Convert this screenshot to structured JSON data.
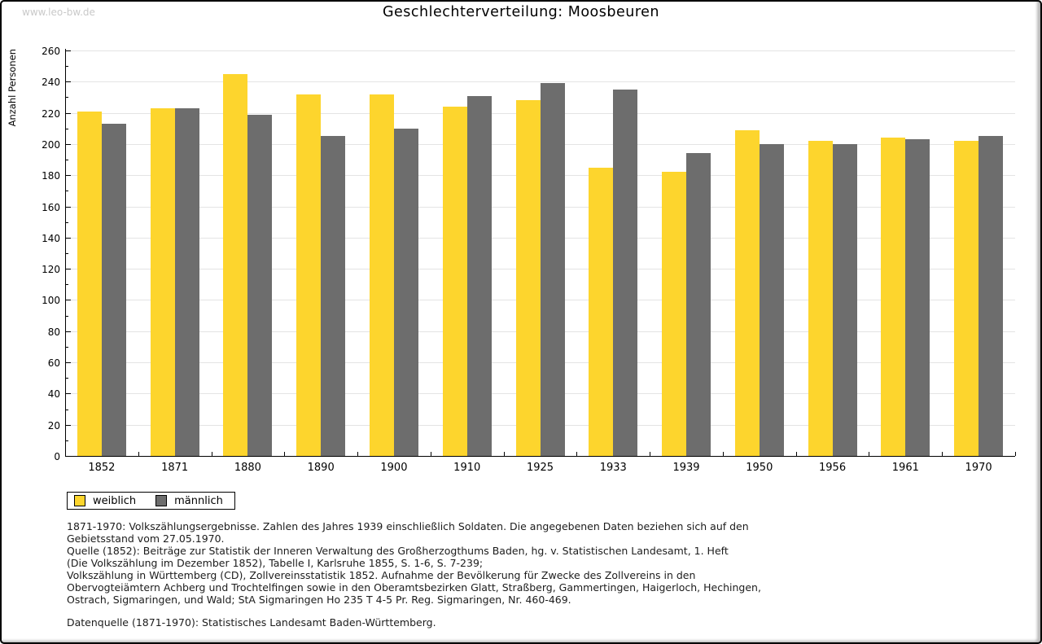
{
  "watermark": "www.leo-bw.de",
  "title": "Geschlechterverteilung: Moosbeuren",
  "chart_data": {
    "type": "bar",
    "title": "Geschlechterverteilung: Moosbeuren",
    "xlabel": "",
    "ylabel": "Anzahl Personen",
    "ylim": [
      0,
      260
    ],
    "ytick_major_step": 20,
    "ytick_minor_step": 10,
    "grid": true,
    "legend_position": "bottom-left",
    "categories": [
      "1852",
      "1871",
      "1880",
      "1890",
      "1900",
      "1910",
      "1925",
      "1933",
      "1939",
      "1950",
      "1956",
      "1961",
      "1970"
    ],
    "series": [
      {
        "name": "weiblich",
        "color": "#fdd52d",
        "values": [
          221,
          223,
          245,
          232,
          232,
          224,
          228,
          185,
          182,
          209,
          202,
          204,
          202
        ]
      },
      {
        "name": "männlich",
        "color": "#6d6d6d",
        "values": [
          213,
          223,
          219,
          205,
          210,
          231,
          239,
          235,
          194,
          200,
          200,
          203,
          205
        ]
      }
    ]
  },
  "legend": {
    "items": [
      {
        "label": "weiblich",
        "color": "#fdd52d"
      },
      {
        "label": "männlich",
        "color": "#6d6d6d"
      }
    ]
  },
  "footer": {
    "lines": [
      "1871-1970: Volkszählungsergebnisse. Zahlen des Jahres 1939 einschließlich Soldaten. Die angegebenen Daten beziehen sich auf den",
      "Gebietsstand vom 27.05.1970.",
      "Quelle (1852): Beiträge zur Statistik der Inneren Verwaltung des Großherzogthums Baden, hg. v. Statistischen Landesamt, 1. Heft",
      "(Die Volkszählung im Dezember 1852), Tabelle I, Karlsruhe 1855, S. 1-6, S. 7-239;",
      "Volkszählung in Württemberg (CD), Zollvereinsstatistik 1852. Aufnahme der Bevölkerung für Zwecke des Zollvereins in den",
      "Obervogteiämtern Achberg und Trochtelfingen sowie in den Oberamtsbezirken Glatt, Straßberg, Gammertingen, Haigerloch, Hechingen,",
      "Ostrach, Sigmaringen, und Wald; StA Sigmaringen Ho 235 T 4-5 Pr. Reg. Sigmaringen, Nr. 460-469."
    ],
    "datenquelle": "Datenquelle (1871-1970): Statistisches Landesamt Baden-Württemberg."
  },
  "colors": {
    "female_bar": "#fdd52d",
    "male_bar": "#6d6d6d",
    "gridline": "#e4e4e4",
    "axis": "#000000",
    "watermark_text": "#c9c9c9",
    "footer_text": "#1c1c1c"
  }
}
